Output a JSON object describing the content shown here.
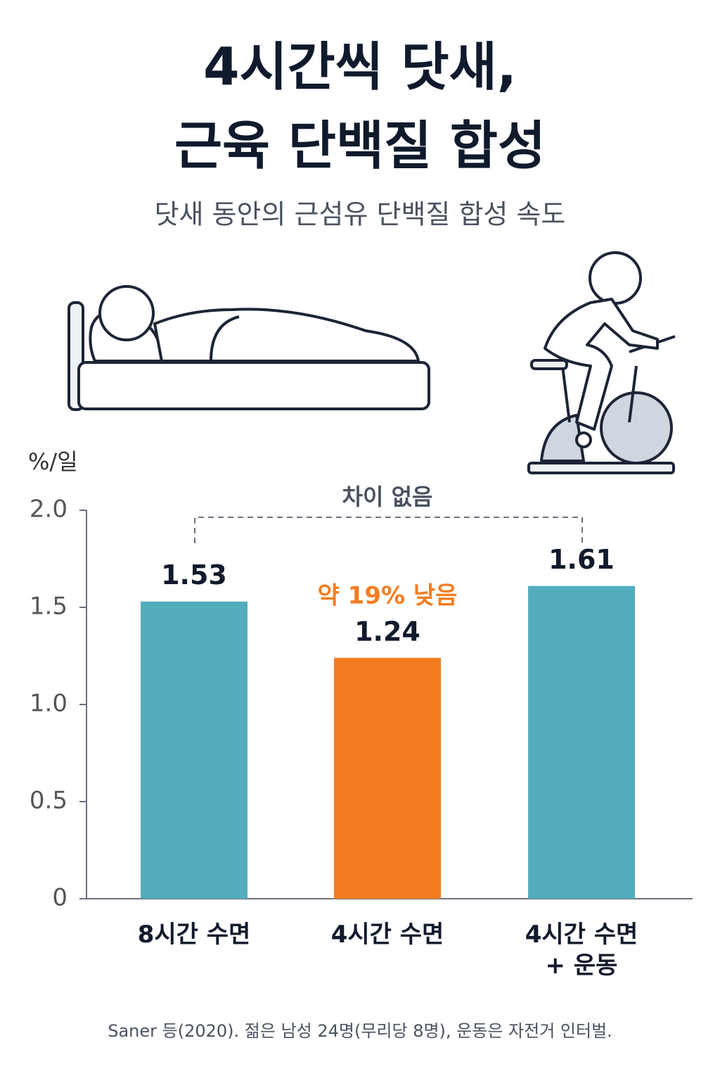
{
  "chart_data": {
    "type": "bar",
    "title_lines": [
      "4시간씩 닷새,",
      "근육 단백질 합성"
    ],
    "subtitle": "닷새 동안의 근섬유 단백질 합성 속도",
    "y_label": "%/일",
    "categories": [
      "8시간 수면",
      "4시간 수면",
      "4시간 수면\n+ 운동"
    ],
    "values": [
      1.53,
      1.24,
      1.61
    ],
    "colors": [
      "#53adbd",
      "#f47c20",
      "#53adbd"
    ],
    "ylim": [
      0,
      2
    ],
    "yticks": [
      0,
      0.5,
      {
        "value": 1,
        "label": "1.0"
      },
      1.5,
      {
        "value": 2,
        "label": "2.0"
      }
    ],
    "bracket_note": "차이 없음",
    "bar_note": "약 19% 낮음",
    "bar_note_color": "#f47c20",
    "source": "Saner 등(2020). 젊은 남성 24명(무리당 8명), 운동은 자전거 인터벌."
  }
}
